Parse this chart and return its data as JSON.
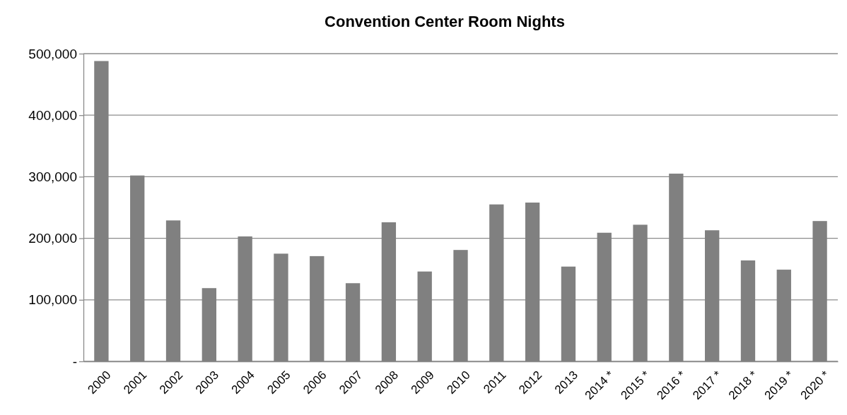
{
  "chart_data": {
    "type": "bar",
    "title": "Convention Center Room Nights",
    "categories": [
      "2000",
      "2001",
      "2002",
      "2003",
      "2004",
      "2005",
      "2006",
      "2007",
      "2008",
      "2009",
      "2010",
      "2011",
      "2012",
      "2013",
      "2014 *",
      "2015 *",
      "2016 *",
      "2017 *",
      "2018 *",
      "2019 *",
      "2020 *"
    ],
    "values": [
      488000,
      302000,
      229000,
      119000,
      203000,
      175000,
      171000,
      127000,
      226000,
      146000,
      181000,
      255000,
      258000,
      154000,
      209000,
      222000,
      305000,
      213000,
      164000,
      149000,
      228000
    ],
    "color": "#808080",
    "ylim": [
      0,
      500000
    ],
    "yticks": [
      {
        "value": 0,
        "label": "-"
      },
      {
        "value": 100000,
        "label": "100,000"
      },
      {
        "value": 200000,
        "label": "200,000"
      },
      {
        "value": 300000,
        "label": "300,000"
      },
      {
        "value": 400000,
        "label": "400,000"
      },
      {
        "value": 500000,
        "label": "500,000"
      }
    ],
    "grid": "y"
  }
}
